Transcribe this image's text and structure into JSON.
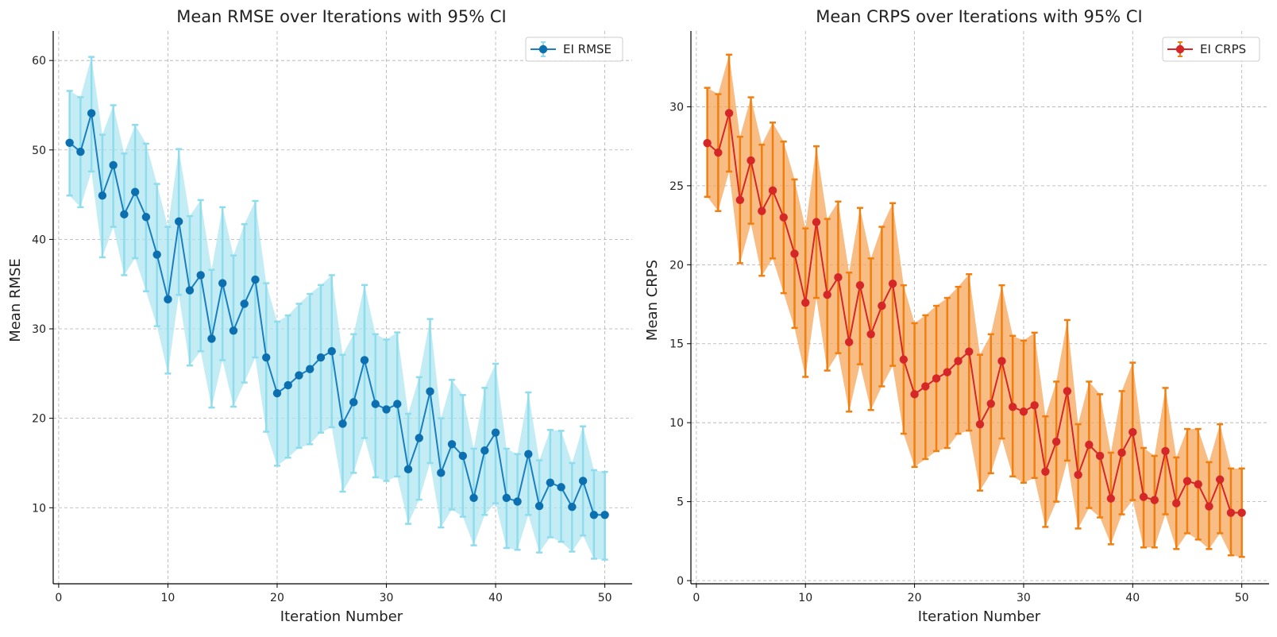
{
  "chart_data": [
    {
      "type": "line",
      "title": "Mean RMSE over Iterations with 95% CI",
      "xlabel": "Iteration Number",
      "ylabel": "Mean RMSE",
      "xlim": [
        -0.5,
        52.5
      ],
      "ylim": [
        1.5,
        63.3
      ],
      "xticks": [
        0,
        10,
        20,
        30,
        40,
        50
      ],
      "yticks": [
        10,
        20,
        30,
        40,
        50,
        60
      ],
      "grid": true,
      "legend_position": "top-right",
      "series": [
        {
          "name": "EI RMSE",
          "line_color": "#1a7fbf",
          "marker_color": "#0c6fb0",
          "error_color": "#8fdcec",
          "band_color": "#a9e4f1",
          "x": [
            1,
            2,
            3,
            4,
            5,
            6,
            7,
            8,
            9,
            10,
            11,
            12,
            13,
            14,
            15,
            16,
            17,
            18,
            19,
            20,
            21,
            22,
            23,
            24,
            25,
            26,
            27,
            28,
            29,
            30,
            31,
            32,
            33,
            34,
            35,
            36,
            37,
            38,
            39,
            40,
            41,
            42,
            43,
            44,
            45,
            46,
            47,
            48,
            49,
            50
          ],
          "values": [
            50.8,
            49.8,
            54.1,
            44.9,
            48.3,
            42.8,
            45.3,
            42.5,
            38.3,
            33.3,
            42.0,
            34.3,
            36.0,
            28.9,
            35.1,
            29.8,
            32.8,
            35.5,
            26.8,
            22.8,
            23.7,
            24.8,
            25.5,
            26.8,
            27.5,
            19.4,
            21.8,
            26.5,
            21.6,
            21.0,
            21.6,
            14.3,
            17.8,
            23.0,
            13.9,
            17.1,
            15.8,
            11.1,
            16.4,
            18.4,
            11.1,
            10.7,
            16.0,
            10.2,
            12.8,
            12.3,
            10.1,
            13.0,
            9.2,
            9.2
          ],
          "ci_lower": [
            44.9,
            43.6,
            47.6,
            38.0,
            41.4,
            36.0,
            37.9,
            34.2,
            30.3,
            25.0,
            33.8,
            25.9,
            27.5,
            21.2,
            26.5,
            21.3,
            24.0,
            26.8,
            18.5,
            14.7,
            15.6,
            16.7,
            17.1,
            18.4,
            19.0,
            11.8,
            13.9,
            17.8,
            13.4,
            13.0,
            13.5,
            8.2,
            10.9,
            15.0,
            7.8,
            9.8,
            9.0,
            5.8,
            9.2,
            10.5,
            5.5,
            5.3,
            9.2,
            5.0,
            6.7,
            6.2,
            5.1,
            6.9,
            4.3,
            4.2
          ],
          "ci_upper": [
            56.6,
            55.9,
            60.4,
            51.7,
            55.0,
            49.6,
            52.8,
            50.7,
            46.2,
            41.4,
            50.1,
            42.6,
            44.4,
            36.6,
            43.6,
            38.2,
            41.7,
            44.3,
            35.1,
            30.8,
            31.5,
            32.8,
            33.9,
            34.9,
            36.0,
            27.1,
            29.4,
            34.9,
            29.4,
            28.8,
            29.6,
            20.5,
            24.6,
            31.1,
            20.0,
            24.3,
            22.6,
            16.6,
            23.4,
            26.1,
            16.6,
            16.0,
            22.9,
            15.3,
            18.7,
            18.6,
            15.0,
            19.1,
            14.2,
            14.0
          ]
        }
      ]
    },
    {
      "type": "line",
      "title": "Mean CRPS over Iterations with 95% CI",
      "xlabel": "Iteration Number",
      "ylabel": "Mean CRPS",
      "xlim": [
        -0.5,
        52.5
      ],
      "ylim": [
        -0.2,
        34.8
      ],
      "xticks": [
        0,
        10,
        20,
        30,
        40,
        50
      ],
      "yticks": [
        0,
        5,
        10,
        15,
        20,
        25,
        30
      ],
      "grid": true,
      "legend_position": "top-right",
      "series": [
        {
          "name": "EI CRPS",
          "line_color": "#d62728",
          "marker_color": "#d62728",
          "error_color": "#f07f10",
          "band_color": "#f5a55c",
          "x": [
            1,
            2,
            3,
            4,
            5,
            6,
            7,
            8,
            9,
            10,
            11,
            12,
            13,
            14,
            15,
            16,
            17,
            18,
            19,
            20,
            21,
            22,
            23,
            24,
            25,
            26,
            27,
            28,
            29,
            30,
            31,
            32,
            33,
            34,
            35,
            36,
            37,
            38,
            39,
            40,
            41,
            42,
            43,
            44,
            45,
            46,
            47,
            48,
            49,
            50
          ],
          "values": [
            27.7,
            27.1,
            29.6,
            24.1,
            26.6,
            23.4,
            24.7,
            23.0,
            20.7,
            17.6,
            22.7,
            18.1,
            19.2,
            15.1,
            18.7,
            15.6,
            17.4,
            18.8,
            14.0,
            11.8,
            12.3,
            12.8,
            13.2,
            13.9,
            14.5,
            9.9,
            11.2,
            13.9,
            11.0,
            10.7,
            11.1,
            6.9,
            8.8,
            12.0,
            6.7,
            8.6,
            7.9,
            5.2,
            8.1,
            9.4,
            5.3,
            5.1,
            8.2,
            4.9,
            6.3,
            6.1,
            4.7,
            6.4,
            4.3,
            4.3
          ],
          "ci_lower": [
            24.3,
            23.4,
            25.9,
            20.1,
            22.6,
            19.3,
            20.4,
            18.2,
            16.0,
            12.9,
            17.9,
            13.3,
            14.4,
            10.7,
            13.7,
            10.8,
            12.3,
            13.6,
            9.3,
            7.2,
            7.7,
            8.2,
            8.4,
            9.3,
            9.5,
            5.7,
            6.8,
            9.0,
            6.6,
            6.2,
            6.5,
            3.4,
            5.0,
            7.6,
            3.3,
            4.6,
            4.0,
            2.3,
            4.2,
            5.1,
            2.1,
            2.1,
            4.2,
            2.0,
            3.0,
            2.6,
            2.0,
            3.0,
            1.6,
            1.5
          ],
          "ci_upper": [
            31.2,
            30.8,
            33.3,
            28.1,
            30.6,
            27.6,
            29.0,
            27.8,
            25.4,
            22.3,
            27.5,
            22.9,
            24.0,
            19.5,
            23.6,
            20.4,
            22.4,
            23.9,
            18.7,
            16.3,
            16.8,
            17.4,
            17.9,
            18.6,
            19.4,
            14.3,
            15.6,
            18.7,
            15.5,
            15.2,
            15.7,
            10.4,
            12.6,
            16.5,
            9.9,
            12.6,
            11.8,
            8.1,
            12.0,
            13.8,
            8.4,
            7.9,
            12.2,
            7.8,
            9.6,
            9.6,
            7.5,
            9.9,
            7.1,
            7.1
          ]
        }
      ]
    }
  ]
}
